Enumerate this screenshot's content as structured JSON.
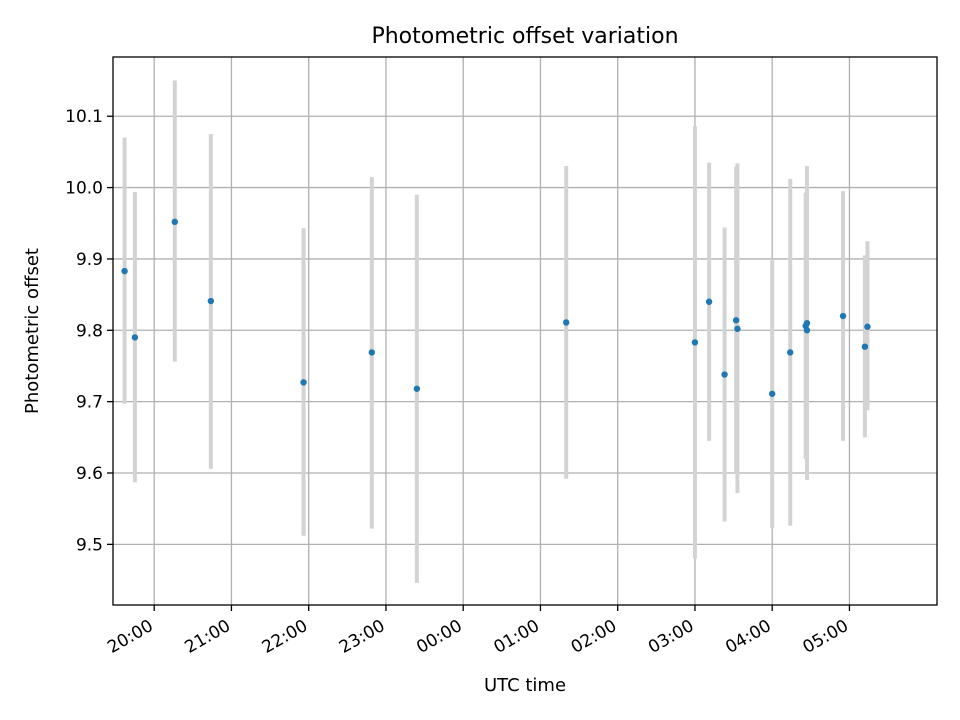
{
  "chart_data": {
    "type": "scatter",
    "title": "Photometric offset variation",
    "xlabel": "UTC time",
    "ylabel": "Photometric offset",
    "x_unit": "UTC time (HH:MM); times after midnight fall on the following day",
    "xlim": [
      "19:28",
      "06:08"
    ],
    "ylim": [
      9.415,
      10.183
    ],
    "x_ticks": [
      "20:00",
      "21:00",
      "22:00",
      "23:00",
      "00:00",
      "01:00",
      "02:00",
      "03:00",
      "04:00",
      "05:00"
    ],
    "y_ticks": [
      9.5,
      9.6,
      9.7,
      9.8,
      9.9,
      10.0,
      10.1
    ],
    "y_tick_labels": [
      "9.5",
      "9.6",
      "9.7",
      "9.8",
      "9.9",
      "10.0",
      "10.1"
    ],
    "grid": true,
    "colors": {
      "marker": "#1f77b4",
      "errorbar": "#d3d3d3",
      "grid": "#b0b0b0"
    },
    "points": [
      {
        "x": "19:37",
        "y": 9.883,
        "ylo": 9.697,
        "yhi": 10.07
      },
      {
        "x": "19:45",
        "y": 9.79,
        "ylo": 9.587,
        "yhi": 9.994
      },
      {
        "x": "20:16",
        "y": 9.952,
        "ylo": 9.756,
        "yhi": 10.15
      },
      {
        "x": "20:44",
        "y": 9.841,
        "ylo": 9.606,
        "yhi": 10.075
      },
      {
        "x": "21:56",
        "y": 9.727,
        "ylo": 9.512,
        "yhi": 9.943
      },
      {
        "x": "22:49",
        "y": 9.769,
        "ylo": 9.522,
        "yhi": 10.015
      },
      {
        "x": "23:24",
        "y": 9.718,
        "ylo": 9.446,
        "yhi": 9.99
      },
      {
        "x": "01:20",
        "y": 9.811,
        "ylo": 9.592,
        "yhi": 10.03
      },
      {
        "x": "03:00",
        "y": 9.783,
        "ylo": 9.48,
        "yhi": 10.086
      },
      {
        "x": "03:11",
        "y": 9.84,
        "ylo": 9.645,
        "yhi": 10.035
      },
      {
        "x": "03:23",
        "y": 9.738,
        "ylo": 9.532,
        "yhi": 9.944
      },
      {
        "x": "03:32",
        "y": 9.814,
        "ylo": 9.6,
        "yhi": 10.029
      },
      {
        "x": "03:33",
        "y": 9.802,
        "ylo": 9.572,
        "yhi": 10.034
      },
      {
        "x": "04:00",
        "y": 9.711,
        "ylo": 9.523,
        "yhi": 9.9
      },
      {
        "x": "04:14",
        "y": 9.769,
        "ylo": 9.526,
        "yhi": 10.012
      },
      {
        "x": "04:26",
        "y": 9.806,
        "ylo": 9.62,
        "yhi": 9.993
      },
      {
        "x": "04:27",
        "y": 9.81,
        "ylo": 9.59,
        "yhi": 10.03
      },
      {
        "x": "04:27",
        "y": 9.8,
        "ylo": 9.6,
        "yhi": 10.01
      },
      {
        "x": "04:55",
        "y": 9.82,
        "ylo": 9.645,
        "yhi": 9.995
      },
      {
        "x": "05:12",
        "y": 9.777,
        "ylo": 9.65,
        "yhi": 9.905
      },
      {
        "x": "05:14",
        "y": 9.805,
        "ylo": 9.688,
        "yhi": 9.925
      }
    ]
  }
}
